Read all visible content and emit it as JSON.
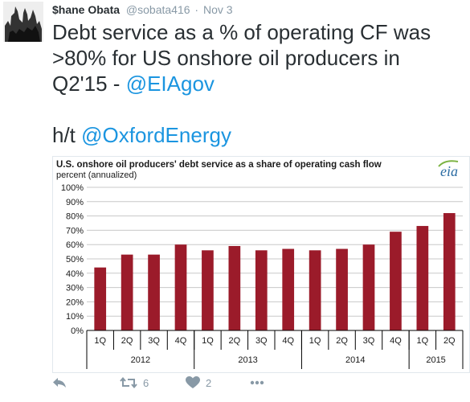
{
  "tweet": {
    "display_name": "$hane Obata",
    "handle": "@sobata416",
    "separator": "·",
    "timestamp": "Nov 3",
    "text_line1": "Debt service as a % of operating CF was",
    "text_line2": ">80% for US onshore oil producers in",
    "text_line3_prefix": "Q2'15 - ",
    "text_line3_mention": "@EIAgov",
    "hat_tip_prefix": "h/t ",
    "hat_tip_mention": "@OxfordEnergy",
    "mention_color": "#1b95e0"
  },
  "chart_data": {
    "type": "bar",
    "title": "U.S. onshore oil producers' debt service as a share of operating cash flow",
    "ylabel": "percent (annualized)",
    "source_logo": "eia",
    "bar_color": "#9b1b2a",
    "ylim": [
      0,
      100
    ],
    "yticks": [
      0,
      10,
      20,
      30,
      40,
      50,
      60,
      70,
      80,
      90,
      100
    ],
    "ytick_suffix": "%",
    "grid": true,
    "categories": [
      "1Q",
      "2Q",
      "3Q",
      "4Q",
      "1Q",
      "2Q",
      "3Q",
      "4Q",
      "1Q",
      "2Q",
      "3Q",
      "4Q",
      "1Q",
      "2Q"
    ],
    "groups": [
      {
        "label": "2012",
        "count": 4
      },
      {
        "label": "2013",
        "count": 4
      },
      {
        "label": "2014",
        "count": 4
      },
      {
        "label": "2015",
        "count": 2
      }
    ],
    "values": [
      44,
      53,
      53,
      60,
      56,
      59,
      56,
      57,
      56,
      57,
      60,
      69,
      73,
      82
    ]
  },
  "actions": {
    "reply_icon": "reply-icon",
    "retweet_icon": "retweet-icon",
    "retweet_count": "6",
    "like_icon": "heart-icon",
    "like_count": "2",
    "more_icon": "more-icon",
    "icon_color": "#8899a6"
  }
}
